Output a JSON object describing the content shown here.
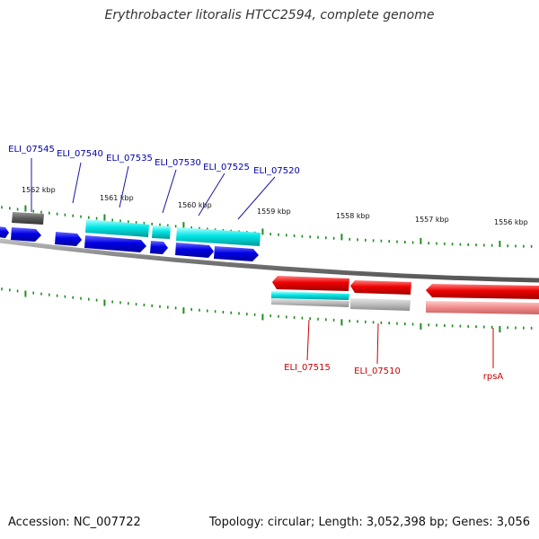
{
  "title": "Erythrobacter litoralis HTCC2594, complete genome",
  "footer": {
    "accession": "Accession: NC_007722",
    "summary": "Topology: circular; Length: 3,052,398 bp; Genes: 3,056"
  },
  "colors": {
    "forward_gene": "#0000e0",
    "forward_rna": "#00dede",
    "pseudo_gene": "#666666",
    "reverse_gene": "#ee0000",
    "reverse_rna": "#00dede",
    "reverse_pseudo": "#bbbbbb",
    "reverse_pink": "#f08a8a",
    "backbone": "#888888",
    "tick": "#228b22",
    "forward_label": "#0000aa",
    "reverse_label": "#cc0000"
  },
  "scale_labels": [
    "1562 kbp",
    "1561 kbp",
    "1560 kbp",
    "1559 kbp",
    "1558 kbp",
    "1557 kbp",
    "1556 kbp"
  ],
  "forward_labels": [
    "ELI_07545",
    "ELI_07540",
    "ELI_07535",
    "ELI_07530",
    "ELI_07525",
    "ELI_07520"
  ],
  "reverse_labels": [
    "ELI_07515",
    "ELI_07510",
    "rpsA"
  ]
}
